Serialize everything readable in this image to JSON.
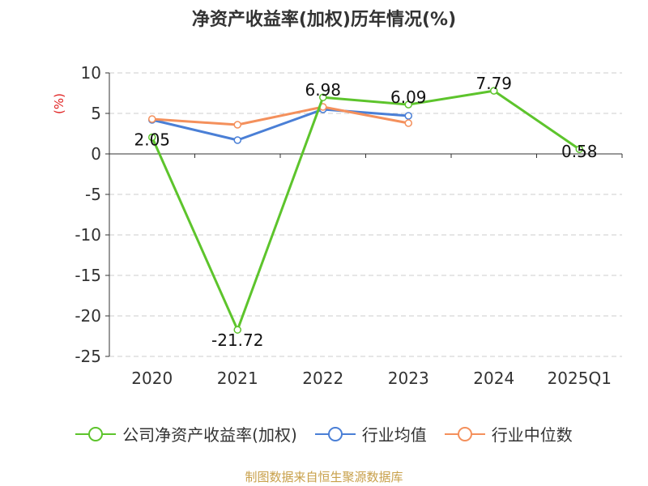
{
  "chart_data": {
    "type": "line",
    "title": "净资产收益率(加权)历年情况(%)",
    "ylabel": "(%)",
    "xlabel": "",
    "categories": [
      "2020",
      "2021",
      "2022",
      "2023",
      "2024",
      "2025Q1"
    ],
    "ylim": [
      -25,
      10
    ],
    "yticks": [
      10,
      5,
      0,
      -5,
      -10,
      -15,
      -20,
      -25
    ],
    "grid": true,
    "legend_position": "bottom",
    "series": [
      {
        "name": "公司净资产收益率(加权)",
        "color": "#5dc42c",
        "values": [
          2.05,
          -21.72,
          6.98,
          6.09,
          7.79,
          0.58
        ],
        "labels": [
          "2.05",
          "-21.72",
          "6.98",
          "6.09",
          "7.79",
          "0.58"
        ]
      },
      {
        "name": "行业均值",
        "color": "#4a7fd6",
        "values": [
          4.2,
          1.7,
          5.5,
          4.7,
          null,
          null
        ]
      },
      {
        "name": "行业中位数",
        "color": "#f4905c",
        "values": [
          4.3,
          3.6,
          5.8,
          3.8,
          null,
          null
        ]
      }
    ]
  },
  "source": "制图数据来自恒生聚源数据库"
}
